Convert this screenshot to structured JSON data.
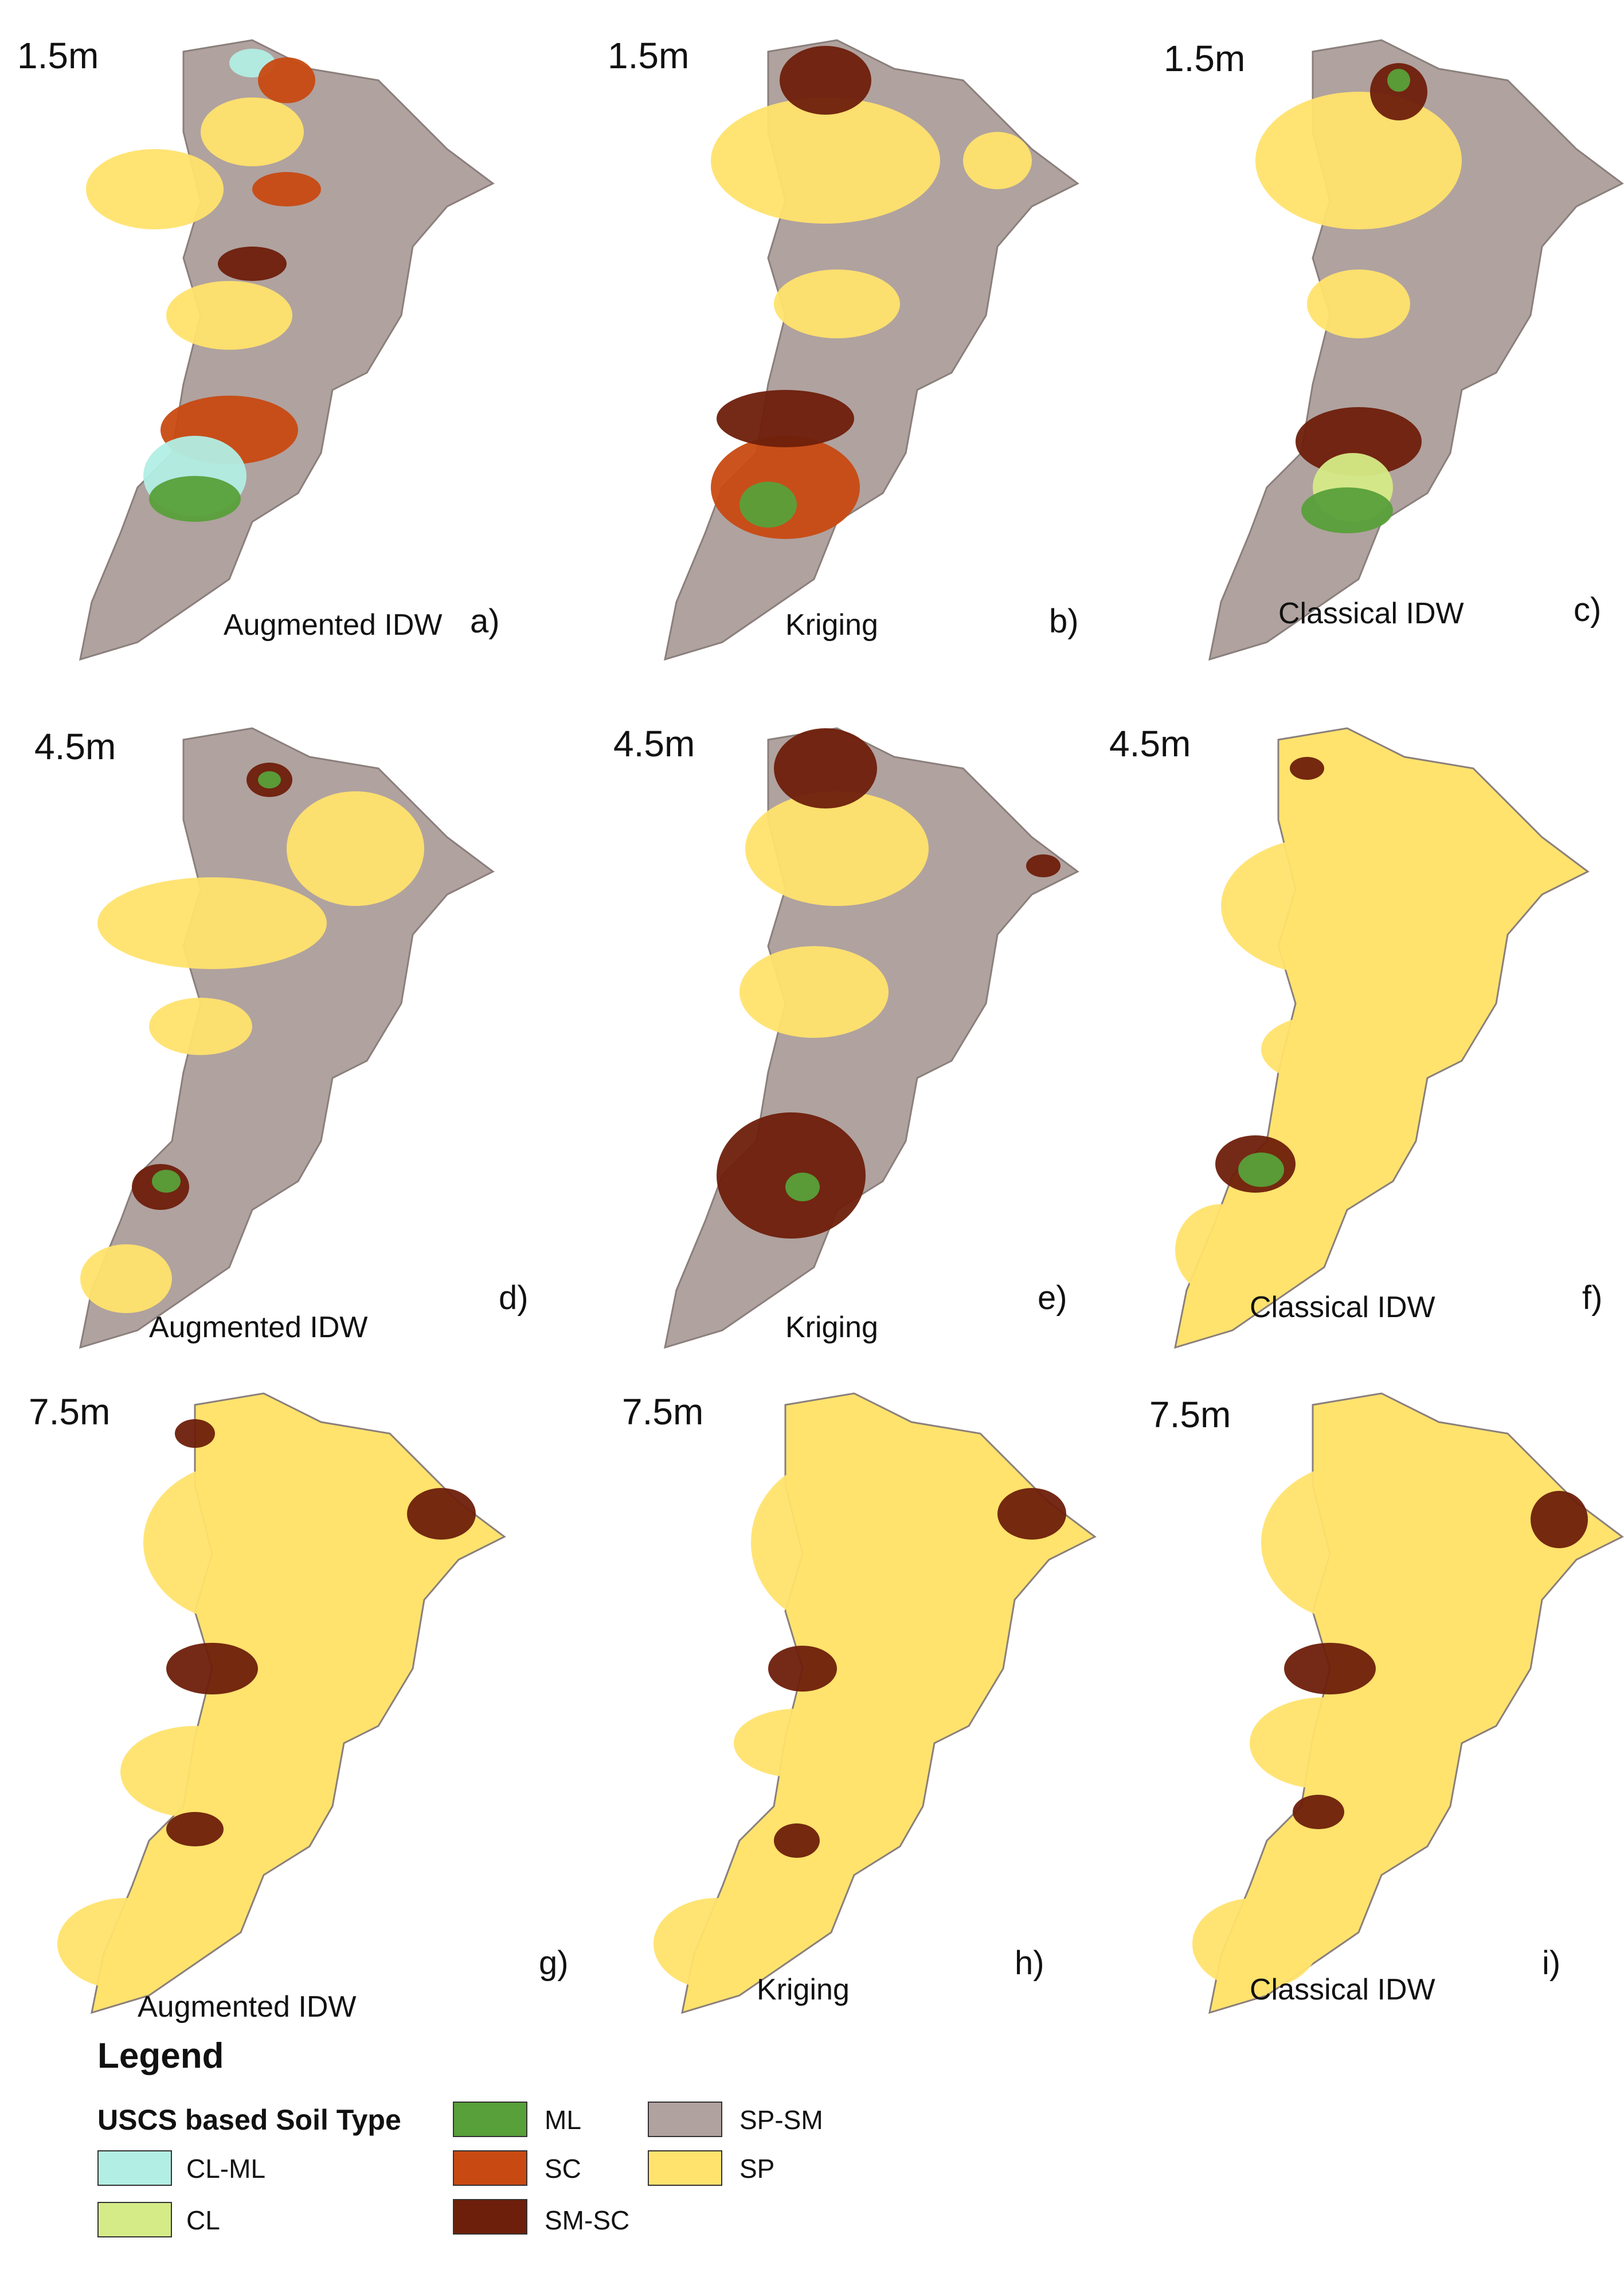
{
  "panels": [
    {
      "id": "a",
      "depth": "1.5m",
      "method": "Augmented IDW",
      "label": "a)"
    },
    {
      "id": "b",
      "depth": "1.5m",
      "method": "Kriging",
      "label": "b)"
    },
    {
      "id": "c",
      "depth": "1.5m",
      "method": "Classical IDW",
      "label": "c)"
    },
    {
      "id": "d",
      "depth": "4.5m",
      "method": "Augmented IDW",
      "label": "d)"
    },
    {
      "id": "e",
      "depth": "4.5m",
      "method": "Kriging",
      "label": "e)"
    },
    {
      "id": "f",
      "depth": "4.5m",
      "method": "Classical IDW",
      "label": "f)"
    },
    {
      "id": "g",
      "depth": "7.5m",
      "method": "Augmented IDW",
      "label": "g)"
    },
    {
      "id": "h",
      "depth": "7.5m",
      "method": "Kriging",
      "label": "h)"
    },
    {
      "id": "i",
      "depth": "7.5m",
      "method": "Classical IDW",
      "label": "i)"
    }
  ],
  "legend": {
    "title": "Legend",
    "subtitle": "USCS based Soil Type",
    "items": [
      {
        "label": "CL-ML",
        "color": "#b2eee4"
      },
      {
        "label": "CL",
        "color": "#d5eb87"
      },
      {
        "label": "ML",
        "color": "#58a03a"
      },
      {
        "label": "SC",
        "color": "#c84a12"
      },
      {
        "label": "SM-SC",
        "color": "#6e1f0b"
      },
      {
        "label": "SP-SM",
        "color": "#b0a29f"
      },
      {
        "label": "SP",
        "color": "#ffe36d"
      }
    ]
  }
}
